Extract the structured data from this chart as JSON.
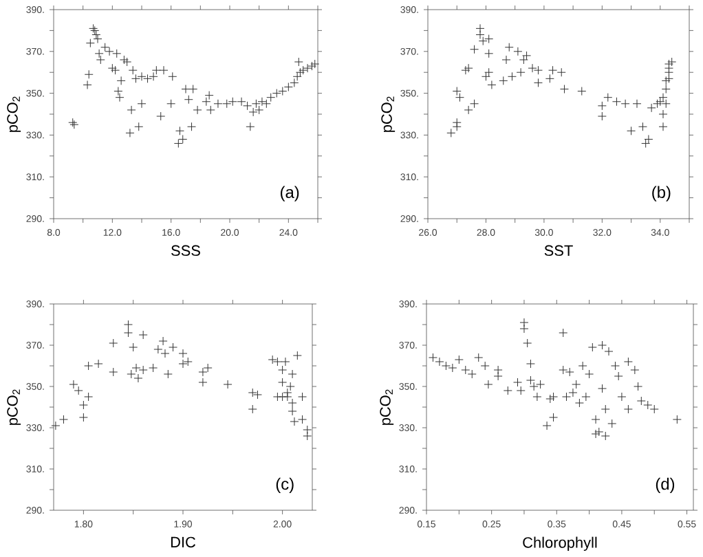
{
  "chart_data": [
    {
      "type": "scatter",
      "xlabel": "SSS",
      "ylabel": "pCO$_{2}$",
      "annotations": [
        "(a)"
      ],
      "marker": "cross",
      "color": "#333333",
      "xlim": [
        8,
        26
      ],
      "xticks": [
        {
          "value": 8,
          "label": "8.0"
        },
        {
          "value": 10,
          "label": null
        },
        {
          "value": 12,
          "label": "12.0"
        },
        {
          "value": 14,
          "label": null
        },
        {
          "value": 16,
          "label": "16.0"
        },
        {
          "value": 18,
          "label": null
        },
        {
          "value": 20,
          "label": "20.0"
        },
        {
          "value": 22,
          "label": null
        },
        {
          "value": 24,
          "label": "24.0"
        },
        {
          "value": 26,
          "label": null
        }
      ],
      "ylim": [
        290,
        390
      ],
      "yticks": [
        {
          "value": 290,
          "label": "290."
        },
        {
          "value": 300,
          "label": null
        },
        {
          "value": 310,
          "label": "310."
        },
        {
          "value": 320,
          "label": null
        },
        {
          "value": 330,
          "label": "330."
        },
        {
          "value": 340,
          "label": null
        },
        {
          "value": 350,
          "label": "350."
        },
        {
          "value": 360,
          "label": null
        },
        {
          "value": 370,
          "label": "370."
        },
        {
          "value": 380,
          "label": null
        },
        {
          "value": 390,
          "label": "390."
        }
      ],
      "x": [
        9.3,
        9.4,
        10.3,
        10.4,
        10.5,
        10.7,
        10.8,
        10.9,
        11.0,
        11.1,
        11.2,
        11.5,
        11.8,
        12.0,
        12.2,
        12.3,
        12.4,
        12.5,
        12.6,
        12.8,
        13.0,
        13.2,
        13.3,
        13.4,
        13.6,
        13.8,
        14.0,
        14.0,
        14.4,
        14.8,
        15.0,
        15.3,
        15.5,
        16.0,
        16.1,
        16.5,
        16.6,
        16.8,
        17.0,
        17.2,
        17.4,
        17.5,
        17.8,
        18.4,
        18.6,
        18.7,
        19.2,
        19.8,
        20.2,
        20.8,
        21.2,
        21.4,
        21.6,
        21.8,
        22.0,
        22.2,
        22.5,
        22.8,
        23.2,
        23.6,
        24.0,
        24.4,
        24.6,
        24.7,
        24.8,
        25.0,
        25.3,
        25.6,
        25.8
      ],
      "values": [
        336,
        335,
        354,
        359,
        374,
        381,
        380,
        378,
        376,
        369,
        366,
        372,
        370,
        362,
        361,
        369,
        351,
        348,
        356,
        366,
        365,
        331,
        342,
        361,
        357,
        334,
        345,
        358,
        357,
        358,
        361,
        339,
        361,
        345,
        358,
        326,
        332,
        328,
        352,
        347,
        334,
        352,
        342,
        346,
        349,
        342,
        345,
        345,
        346,
        346,
        344,
        334,
        341,
        345,
        342,
        346,
        345,
        348,
        350,
        351,
        353,
        355,
        358,
        365,
        360,
        361,
        362,
        363,
        364
      ]
    },
    {
      "type": "scatter",
      "xlabel": "SST",
      "ylabel": "pCO$_{2}$",
      "annotations": [
        "(b)"
      ],
      "marker": "cross",
      "color": "#333333",
      "xlim": [
        26,
        35
      ],
      "xticks": [
        {
          "value": 26,
          "label": "26.0"
        },
        {
          "value": 27,
          "label": null
        },
        {
          "value": 28,
          "label": "28.0"
        },
        {
          "value": 29,
          "label": null
        },
        {
          "value": 30,
          "label": "30.0"
        },
        {
          "value": 31,
          "label": null
        },
        {
          "value": 32,
          "label": "32.0"
        },
        {
          "value": 33,
          "label": null
        },
        {
          "value": 34,
          "label": "34.0"
        },
        {
          "value": 35,
          "label": null
        }
      ],
      "ylim": [
        290,
        390
      ],
      "yticks": [
        {
          "value": 290,
          "label": "290."
        },
        {
          "value": 300,
          "label": null
        },
        {
          "value": 310,
          "label": "310."
        },
        {
          "value": 320,
          "label": null
        },
        {
          "value": 330,
          "label": "330."
        },
        {
          "value": 340,
          "label": null
        },
        {
          "value": 350,
          "label": "350."
        },
        {
          "value": 360,
          "label": null
        },
        {
          "value": 370,
          "label": "370."
        },
        {
          "value": 380,
          "label": null
        },
        {
          "value": 390,
          "label": "390."
        }
      ],
      "x": [
        26.8,
        27.0,
        27.0,
        27.0,
        27.1,
        27.3,
        27.4,
        27.4,
        27.6,
        27.6,
        27.8,
        27.8,
        27.9,
        28.0,
        28.1,
        28.1,
        28.1,
        28.2,
        28.6,
        28.7,
        28.8,
        28.9,
        29.1,
        29.2,
        29.3,
        29.4,
        29.6,
        29.8,
        29.8,
        30.2,
        30.3,
        30.6,
        30.7,
        31.3,
        32.0,
        32.0,
        32.2,
        32.5,
        32.8,
        33.0,
        33.2,
        33.4,
        33.5,
        33.6,
        33.7,
        33.9,
        34.1,
        34.1,
        34.1,
        34.2,
        34.2,
        34.3,
        34.3,
        34.3,
        34.3,
        34.4,
        34.2,
        34.0
      ],
      "values": [
        331,
        351,
        336,
        334,
        348,
        361,
        362,
        342,
        345,
        371,
        381,
        378,
        375,
        358,
        376,
        360,
        369,
        354,
        356,
        366,
        372,
        358,
        370,
        360,
        366,
        368,
        362,
        361,
        355,
        357,
        361,
        360,
        352,
        351,
        344,
        339,
        348,
        346,
        345,
        332,
        345,
        334,
        326,
        328,
        343,
        345,
        340,
        334,
        348,
        352,
        356,
        360,
        364,
        362,
        357,
        365,
        345,
        346
      ]
    },
    {
      "type": "scatter",
      "xlabel": "DIC",
      "ylabel": "pCO$_{2}$",
      "annotations": [
        "(c)"
      ],
      "marker": "cross",
      "color": "#333333",
      "xlim": [
        1.77,
        2.03
      ],
      "xticks": [
        {
          "value": 1.8,
          "label": "1.80"
        },
        {
          "value": 1.85,
          "label": null
        },
        {
          "value": 1.9,
          "label": "1.90"
        },
        {
          "value": 1.95,
          "label": null
        },
        {
          "value": 2.0,
          "label": "2.00"
        }
      ],
      "ylim": [
        290,
        390
      ],
      "yticks": [
        {
          "value": 290,
          "label": "290."
        },
        {
          "value": 300,
          "label": null
        },
        {
          "value": 310,
          "label": "310."
        },
        {
          "value": 320,
          "label": null
        },
        {
          "value": 330,
          "label": "330."
        },
        {
          "value": 340,
          "label": null
        },
        {
          "value": 350,
          "label": "350."
        },
        {
          "value": 360,
          "label": null
        },
        {
          "value": 370,
          "label": "370."
        },
        {
          "value": 380,
          "label": null
        },
        {
          "value": 390,
          "label": "390."
        }
      ],
      "x": [
        1.772,
        1.78,
        1.79,
        1.795,
        1.8,
        1.8,
        1.805,
        1.805,
        1.815,
        1.83,
        1.83,
        1.845,
        1.845,
        1.85,
        1.848,
        1.853,
        1.855,
        1.86,
        1.86,
        1.87,
        1.875,
        1.88,
        1.882,
        1.885,
        1.89,
        1.9,
        1.9,
        1.905,
        1.92,
        1.92,
        1.925,
        1.945,
        1.97,
        1.97,
        1.975,
        1.99,
        1.995,
        2.0,
        2.0,
        2.005,
        2.005,
        2.01,
        2.01,
        2.01,
        2.012,
        2.015,
        2.02,
        2.02,
        2.025,
        2.025,
        2.0,
        1.995,
        2.003,
        2.008
      ],
      "values": [
        331,
        334,
        351,
        348,
        341,
        335,
        345,
        360,
        361,
        371,
        357,
        380,
        376,
        369,
        356,
        359,
        354,
        375,
        358,
        359,
        368,
        372,
        366,
        356,
        369,
        361,
        366,
        362,
        357,
        352,
        359,
        351,
        347,
        339,
        346,
        363,
        362,
        358,
        352,
        347,
        345,
        356,
        342,
        338,
        333,
        365,
        345,
        334,
        329,
        326,
        345,
        345,
        362,
        350
      ]
    },
    {
      "type": "scatter",
      "xlabel": "Chlorophyll",
      "ylabel": "pCO$_{2}$",
      "annotations": [
        "(d)"
      ],
      "marker": "cross",
      "color": "#333333",
      "xlim": [
        0.15,
        0.56
      ],
      "xticks": [
        {
          "value": 0.15,
          "label": "0.15"
        },
        {
          "value": 0.2,
          "label": null
        },
        {
          "value": 0.25,
          "label": "0.25"
        },
        {
          "value": 0.3,
          "label": null
        },
        {
          "value": 0.35,
          "label": "0.35"
        },
        {
          "value": 0.4,
          "label": null
        },
        {
          "value": 0.45,
          "label": "0.45"
        },
        {
          "value": 0.5,
          "label": null
        },
        {
          "value": 0.55,
          "label": "0.55"
        }
      ],
      "ylim": [
        290,
        390
      ],
      "yticks": [
        {
          "value": 290,
          "label": "290."
        },
        {
          "value": 300,
          "label": null
        },
        {
          "value": 310,
          "label": "310."
        },
        {
          "value": 320,
          "label": null
        },
        {
          "value": 330,
          "label": "330."
        },
        {
          "value": 340,
          "label": null
        },
        {
          "value": 350,
          "label": "350."
        },
        {
          "value": 360,
          "label": null
        },
        {
          "value": 370,
          "label": "370."
        },
        {
          "value": 380,
          "label": null
        },
        {
          "value": 390,
          "label": "390."
        }
      ],
      "x": [
        0.16,
        0.17,
        0.18,
        0.19,
        0.2,
        0.21,
        0.22,
        0.23,
        0.24,
        0.245,
        0.26,
        0.26,
        0.275,
        0.29,
        0.295,
        0.3,
        0.3,
        0.305,
        0.31,
        0.31,
        0.315,
        0.32,
        0.325,
        0.335,
        0.34,
        0.345,
        0.345,
        0.36,
        0.36,
        0.365,
        0.37,
        0.375,
        0.38,
        0.385,
        0.39,
        0.395,
        0.4,
        0.405,
        0.41,
        0.41,
        0.415,
        0.42,
        0.42,
        0.425,
        0.425,
        0.43,
        0.435,
        0.44,
        0.445,
        0.45,
        0.46,
        0.46,
        0.47,
        0.475,
        0.48,
        0.49,
        0.5,
        0.535
      ],
      "values": [
        364,
        362,
        360,
        359,
        363,
        358,
        356,
        364,
        360,
        351,
        358,
        355,
        348,
        352,
        348,
        381,
        378,
        371,
        361,
        353,
        350,
        345,
        351,
        331,
        344,
        345,
        335,
        376,
        358,
        345,
        357,
        347,
        351,
        342,
        360,
        345,
        356,
        369,
        334,
        327,
        328,
        370,
        349,
        326,
        339,
        367,
        332,
        360,
        355,
        345,
        362,
        339,
        358,
        350,
        343,
        341,
        339,
        334
      ]
    }
  ]
}
